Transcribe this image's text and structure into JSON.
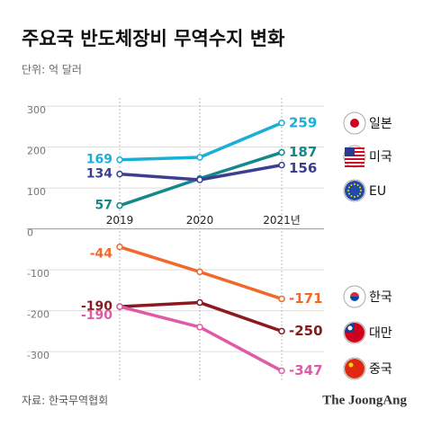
{
  "chart_data": {
    "type": "line",
    "title": "주요국 반도체장비 무역수지 변화",
    "subtitle": "단위: 억 달러",
    "source": "자료: 한국무역협회",
    "brand": "The JoongAng",
    "categories": [
      "2019",
      "2020",
      "2021년"
    ],
    "series": [
      {
        "name": "일본",
        "color": "#1aafd6",
        "values": [
          169,
          175,
          259
        ]
      },
      {
        "name": "미국",
        "color": "#14898b",
        "values": [
          57,
          123,
          187
        ]
      },
      {
        "name": "EU",
        "color": "#3c3f8f",
        "values": [
          134,
          120,
          156
        ]
      },
      {
        "name": "한국",
        "color": "#f0692b",
        "values": [
          -44,
          -105,
          -171
        ]
      },
      {
        "name": "대만",
        "color": "#8a1a1f",
        "values": [
          -190,
          -180,
          -250
        ]
      },
      {
        "name": "중국",
        "color": "#e05aa8",
        "values": [
          -190,
          -240,
          -347
        ]
      }
    ],
    "ylim": [
      -370,
      320
    ],
    "yticks": [
      300,
      200,
      100,
      0,
      -100,
      -200,
      -300
    ],
    "grid": true
  }
}
